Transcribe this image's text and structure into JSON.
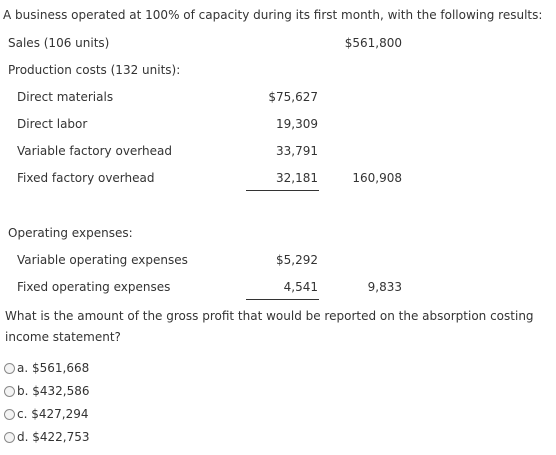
{
  "intro": "A business operated at 100% of capacity during its first month, with the following results:",
  "sales": {
    "label": "Sales (106 units)",
    "total": "$561,800"
  },
  "production": {
    "heading": "Production costs (132 units):",
    "items": [
      {
        "label": "Direct materials",
        "amount": "$75,627"
      },
      {
        "label": "Direct labor",
        "amount": "19,309"
      },
      {
        "label": "Variable factory overhead",
        "amount": "33,791"
      },
      {
        "label": "Fixed factory overhead",
        "amount": "32,181"
      }
    ],
    "total": "160,908"
  },
  "operating": {
    "heading": "Operating expenses:",
    "items": [
      {
        "label": "Variable operating expenses",
        "amount": "$5,292"
      },
      {
        "label": "Fixed operating expenses",
        "amount": "4,541"
      }
    ],
    "total": "9,833"
  },
  "question": {
    "line1": "What is the amount of the gross profit that would be reported on the absorption costing",
    "line2": "income statement?"
  },
  "options": [
    {
      "letter": "a.",
      "value": "$561,668"
    },
    {
      "letter": "b.",
      "value": "$432,586"
    },
    {
      "letter": "c.",
      "value": "$427,294"
    },
    {
      "letter": "d.",
      "value": "$422,753"
    }
  ]
}
